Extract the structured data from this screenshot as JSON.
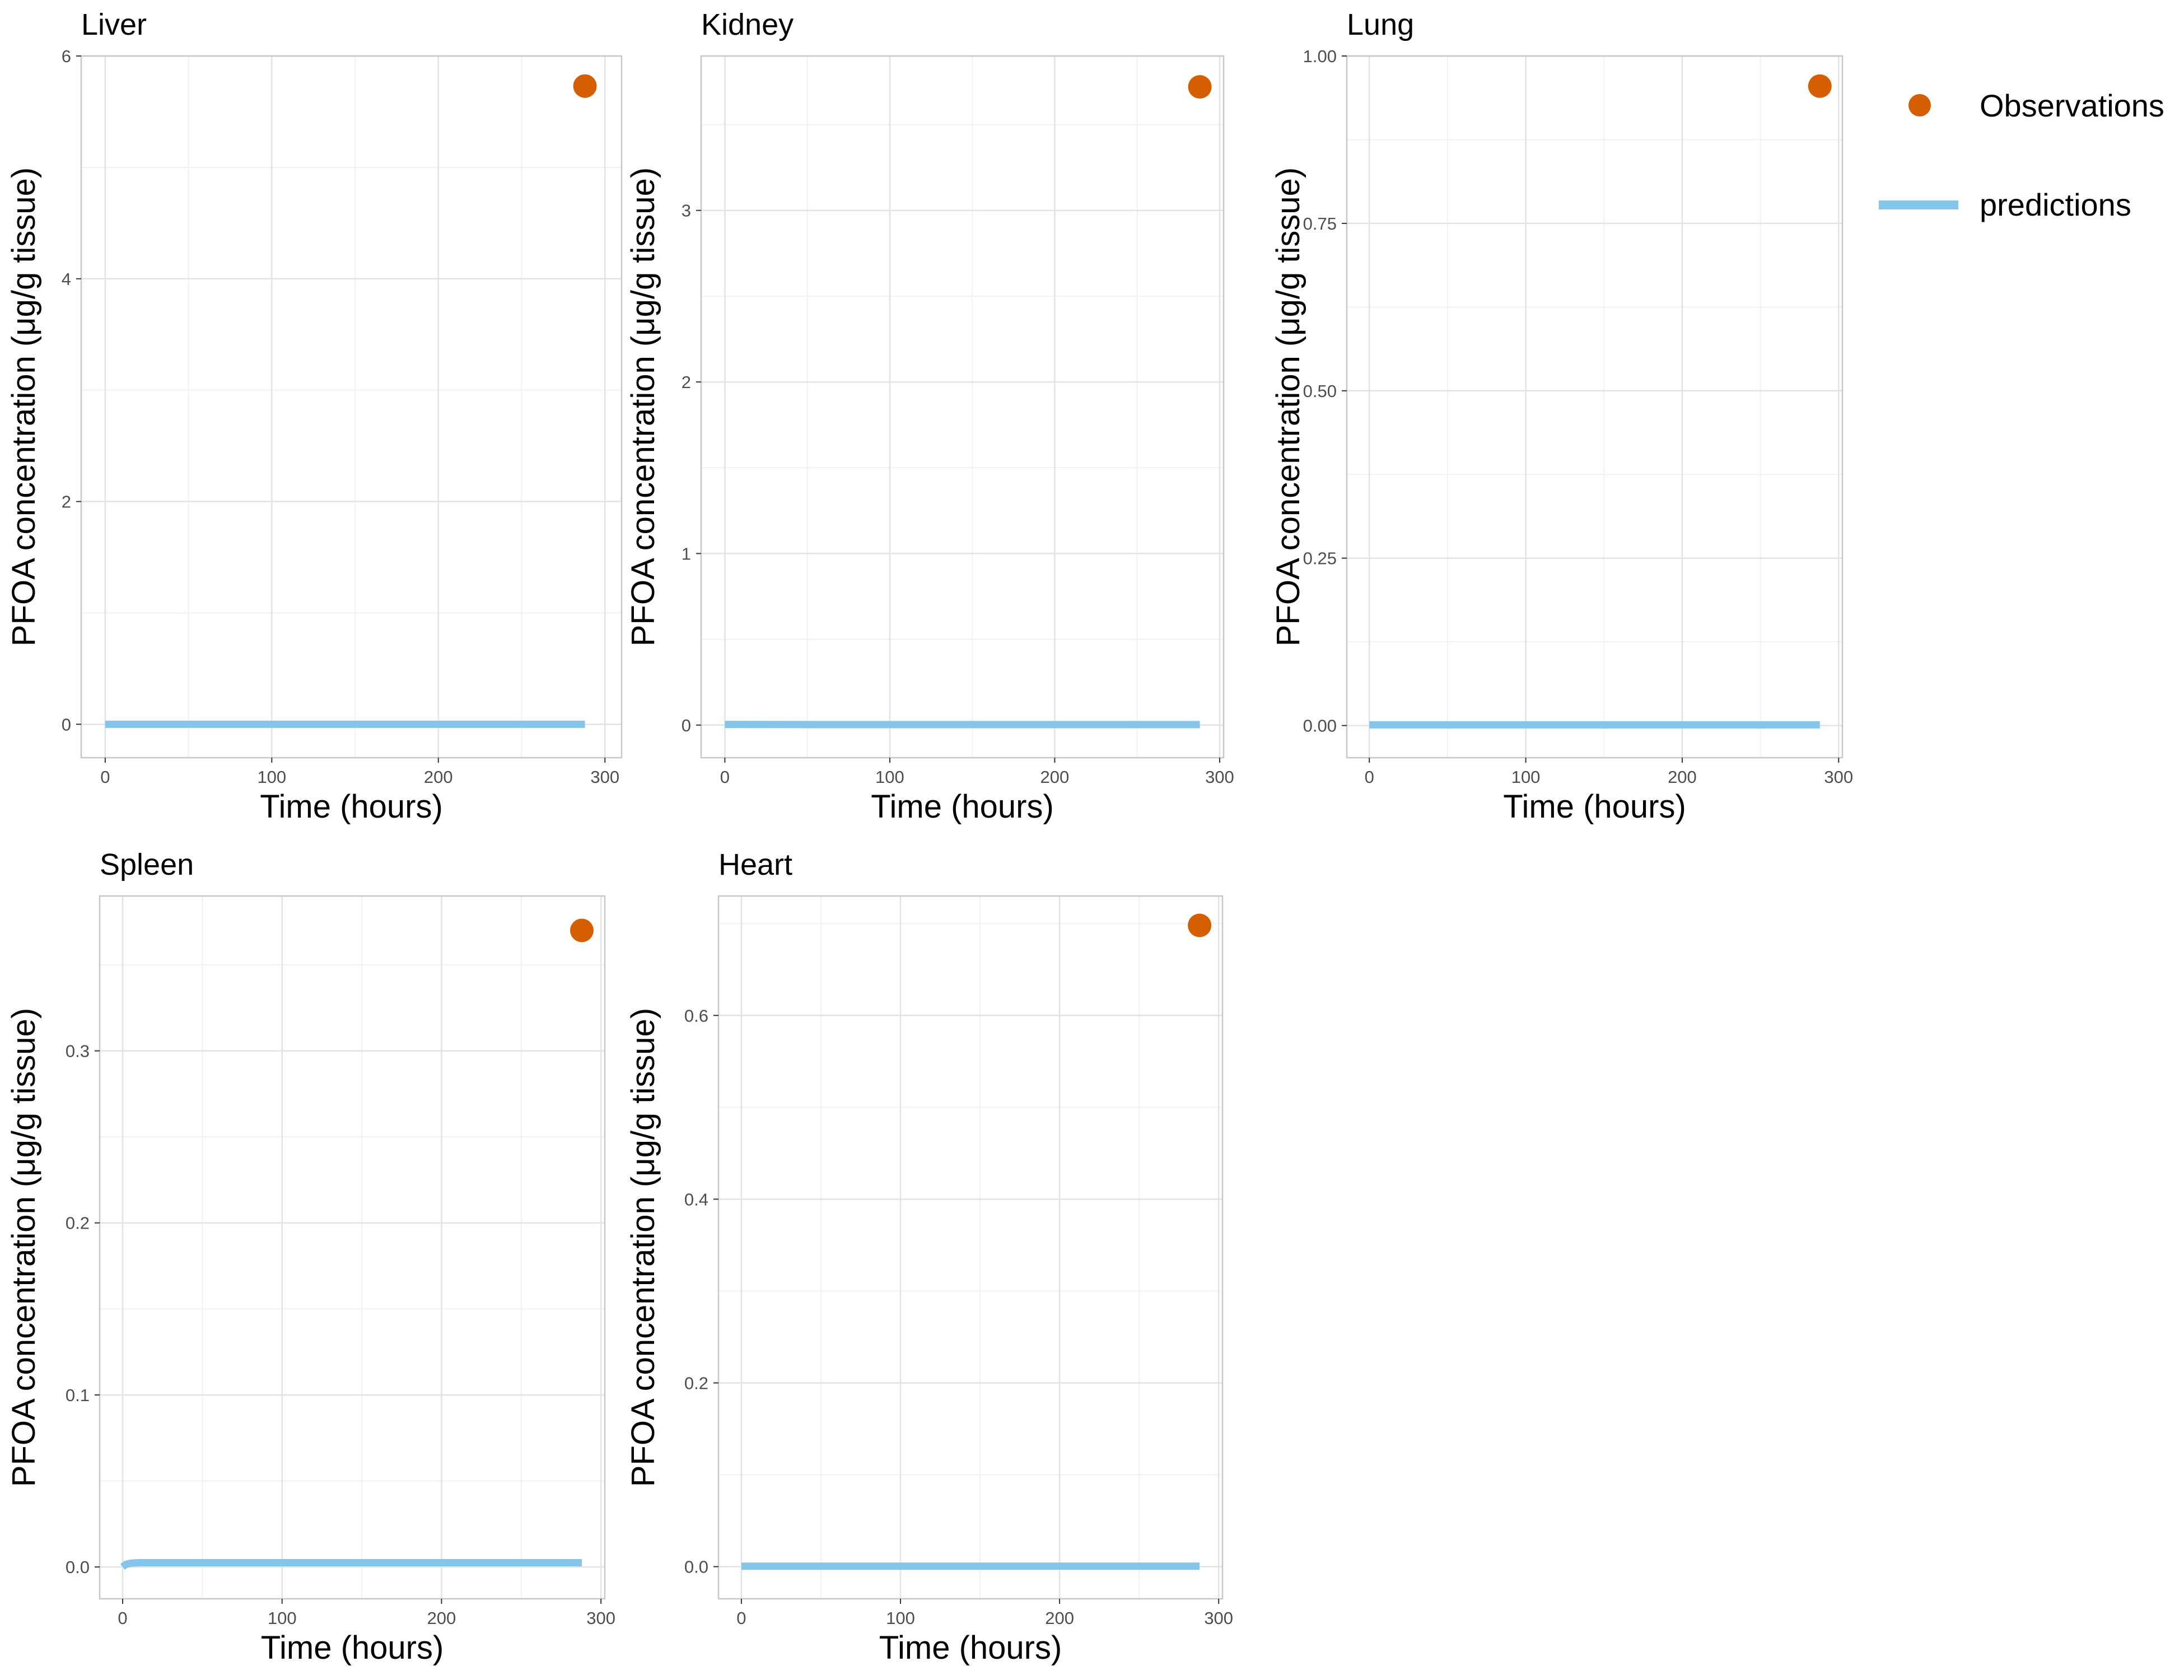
{
  "chart_data": [
    {
      "type": "line",
      "title": "Liver",
      "xlabel": "Time (hours)",
      "ylabel": "PFOA concentration (μg/g tissue)",
      "xlim": [
        -14.4,
        310
      ],
      "ylim": [
        -0.3,
        6.0
      ],
      "xticks": [
        0,
        100,
        200,
        300
      ],
      "xtick_labels": [
        "0",
        "100",
        "200",
        "300"
      ],
      "yticks": [
        0,
        2,
        4,
        6
      ],
      "ytick_labels": [
        "0",
        "2",
        "4",
        "6"
      ],
      "predictions": {
        "x": [
          0,
          50,
          100,
          150,
          200,
          250,
          288
        ],
        "y": [
          0,
          0,
          0,
          0,
          0,
          0,
          0
        ]
      },
      "observations": [
        {
          "x": 288,
          "y": 5.73
        }
      ],
      "grid": true
    },
    {
      "type": "line",
      "title": "Kidney",
      "xlabel": "Time (hours)",
      "ylabel": "PFOA concentration (μg/g tissue)",
      "xlim": [
        -14.4,
        302.4
      ],
      "ylim": [
        -0.19,
        3.9
      ],
      "xticks": [
        0,
        100,
        200,
        300
      ],
      "xtick_labels": [
        "0",
        "100",
        "200",
        "300"
      ],
      "yticks": [
        0,
        1,
        2,
        3
      ],
      "ytick_labels": [
        "0",
        "1",
        "2",
        "3"
      ],
      "predictions": {
        "x": [
          0,
          50,
          100,
          150,
          200,
          250,
          288
        ],
        "y": [
          0.004,
          0.003,
          0.003,
          0.003,
          0.003,
          0.003,
          0.003
        ]
      },
      "observations": [
        {
          "x": 288,
          "y": 3.72
        }
      ],
      "grid": true
    },
    {
      "type": "line",
      "title": "Lung",
      "xlabel": "Time (hours)",
      "ylabel": "PFOA concentration (μg/g tissue)",
      "xlim": [
        -14.4,
        302.4
      ],
      "ylim": [
        -0.048,
        1.0
      ],
      "xticks": [
        0,
        100,
        200,
        300
      ],
      "xtick_labels": [
        "0",
        "100",
        "200",
        "300"
      ],
      "yticks": [
        0,
        0.25,
        0.5,
        0.75,
        1.0
      ],
      "ytick_labels": [
        "0.00",
        "0.25",
        "0.50",
        "0.75",
        "1.00"
      ],
      "predictions": {
        "x": [
          0,
          50,
          100,
          150,
          200,
          250,
          288
        ],
        "y": [
          0.001,
          0.001,
          0.001,
          0.001,
          0.001,
          0.001,
          0.001
        ]
      },
      "observations": [
        {
          "x": 288,
          "y": 0.955
        }
      ],
      "grid": true
    },
    {
      "type": "line",
      "title": "Spleen",
      "xlabel": "Time (hours)",
      "ylabel": "PFOA concentration (μg/g tissue)",
      "xlim": [
        -14.4,
        302.4
      ],
      "ylim": [
        -0.0185,
        0.39
      ],
      "xticks": [
        0,
        100,
        200,
        300
      ],
      "xtick_labels": [
        "0",
        "100",
        "200",
        "300"
      ],
      "yticks": [
        0,
        0.1,
        0.2,
        0.3
      ],
      "ytick_labels": [
        "0.0",
        "0.1",
        "0.2",
        "0.3"
      ],
      "predictions": {
        "x": [
          0,
          2,
          5,
          10,
          25,
          50,
          100,
          150,
          200,
          250,
          288
        ],
        "y": [
          0,
          0.0015,
          0.0022,
          0.0025,
          0.0025,
          0.0025,
          0.0025,
          0.0025,
          0.0025,
          0.0025,
          0.0025
        ]
      },
      "observations": [
        {
          "x": 288,
          "y": 0.37
        }
      ],
      "grid": true
    },
    {
      "type": "line",
      "title": "Heart",
      "xlabel": "Time (hours)",
      "ylabel": "PFOA concentration (μg/g tissue)",
      "xlim": [
        -14.4,
        302.4
      ],
      "ylim": [
        -0.035,
        0.73
      ],
      "xticks": [
        0,
        100,
        200,
        300
      ],
      "xtick_labels": [
        "0",
        "100",
        "200",
        "300"
      ],
      "yticks": [
        0,
        0.2,
        0.4,
        0.6
      ],
      "ytick_labels": [
        "0.0",
        "0.2",
        "0.4",
        "0.6"
      ],
      "predictions": {
        "x": [
          0,
          50,
          100,
          150,
          200,
          250,
          288
        ],
        "y": [
          0.0005,
          0.0005,
          0.0005,
          0.0005,
          0.0005,
          0.0005,
          0.0005
        ]
      },
      "observations": [
        {
          "x": 288,
          "y": 0.698
        }
      ],
      "grid": true
    }
  ],
  "legend": {
    "items": [
      {
        "label": "Observations",
        "kind": "point",
        "color": "#d55e00"
      },
      {
        "label": "predictions",
        "kind": "line",
        "color": "#85c5ea"
      }
    ],
    "position": "right"
  },
  "colors": {
    "observations": "#d55e00",
    "predictions": "#85c5ea",
    "grid_major": "#e3e3e3",
    "grid_minor": "#f1f1f1",
    "panel_border": "#c8c8c8",
    "tick_text": "#4d4d4d"
  }
}
